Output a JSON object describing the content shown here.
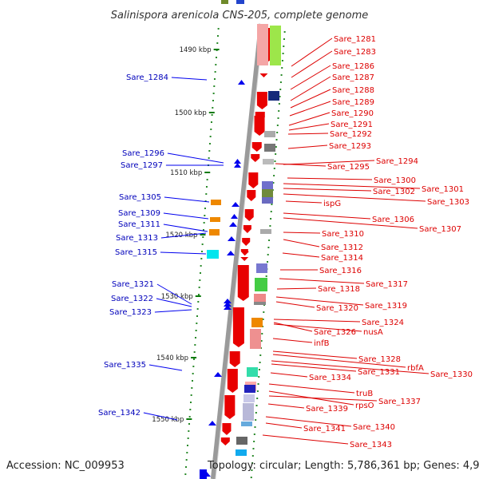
{
  "title": "Salinispora arenicola CNS-205, complete genome",
  "footer": {
    "accession": "Accession: NC_009953",
    "topology": "Topology: circular; Length: 5,786,361 bp; Genes: 4,979"
  },
  "colors": {
    "forward_gene": "#e80000",
    "reverse_gene": "#0000ee",
    "left_label": "#0000bb",
    "right_label": "#dd0000",
    "tick": "#0a7a0a",
    "axis": "#888888"
  },
  "scale_ticks": [
    "1490 kbp",
    "1500 kbp",
    "1510 kbp",
    "1520 kbp",
    "1530 kbp",
    "1540 kbp",
    "1550 kbp"
  ],
  "left_labels": [
    "Sare_1284",
    "Sare_1296",
    "Sare_1297",
    "Sare_1305",
    "Sare_1309",
    "Sare_1311",
    "Sare_1313",
    "Sare_1315",
    "Sare_1321",
    "Sare_1322",
    "Sare_1323",
    "Sare_1335",
    "Sare_1342"
  ],
  "right_labels": [
    "Sare_1281",
    "Sare_1283",
    "Sare_1286",
    "Sare_1287",
    "Sare_1288",
    "Sare_1289",
    "Sare_1290",
    "Sare_1291",
    "Sare_1292",
    "Sare_1293",
    "Sare_1294",
    "Sare_1295",
    "Sare_1300",
    "Sare_1301",
    "Sare_1302",
    "Sare_1303",
    "ispG",
    "Sare_1306",
    "Sare_1307",
    "Sare_1310",
    "Sare_1312",
    "Sare_1314",
    "Sare_1316",
    "Sare_1317",
    "Sare_1318",
    "Sare_1319",
    "Sare_1320",
    "Sare_1324",
    "Sare_1326",
    "nusA",
    "infB",
    "Sare_1328",
    "rbfA",
    "Sare_1330",
    "Sare_1331",
    "Sare_1334",
    "truB",
    "rpsO",
    "Sare_1337",
    "Sare_1339",
    "Sare_1340",
    "Sare_1341",
    "Sare_1343"
  ]
}
